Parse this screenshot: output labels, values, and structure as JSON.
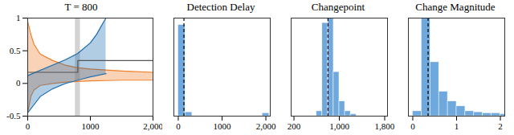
{
  "chart_data": [
    {
      "type": "line",
      "title": "T = 800",
      "xlim": [
        0,
        2000
      ],
      "xticks": [
        0,
        1000,
        {
          "value": 2000,
          "label": "2,000"
        }
      ],
      "ylim": [
        -0.5,
        1
      ],
      "yticks": [
        -0.5,
        0,
        0.5,
        1
      ],
      "highlight_x": [
        760,
        840
      ],
      "series": [
        {
          "type": "band",
          "color": "#f07f2a",
          "x": [
            0,
            50,
            100,
            200,
            400,
            600,
            800,
            1000,
            1500,
            2000
          ],
          "upper": [
            0.95,
            0.75,
            0.6,
            0.45,
            0.35,
            0.28,
            0.24,
            0.22,
            0.19,
            0.17
          ],
          "lower": [
            -0.45,
            -0.2,
            -0.1,
            -0.03,
            0,
            0.02,
            0.03,
            0.04,
            0.05,
            0.05
          ]
        },
        {
          "type": "band",
          "color": "#1f6fb2",
          "x": [
            0,
            200,
            400,
            600,
            800,
            1000,
            1100,
            1200,
            1250
          ],
          "upper": [
            0.12,
            0.2,
            0.28,
            0.36,
            0.46,
            0.62,
            0.75,
            0.92,
            1.0
          ],
          "lower": [
            -0.45,
            -0.2,
            -0.08,
            0,
            0.05,
            0.1,
            0.12,
            0.14,
            0.15
          ]
        },
        {
          "type": "line",
          "color": "#555555",
          "x": [
            0,
            800,
            800,
            2000
          ],
          "values": [
            0.17,
            0.17,
            0.35,
            0.35
          ]
        }
      ]
    },
    {
      "type": "histogram",
      "title": "Detection Delay",
      "color": "#6fa8dc",
      "tick_labels": "x",
      "xlim": [
        -100,
        2100
      ],
      "xticks": [
        0,
        1000,
        {
          "value": 2000,
          "label": "2,000"
        }
      ],
      "ylim": [
        0,
        1
      ],
      "bins": [
        0,
        160,
        320,
        480,
        640,
        800,
        960,
        1120,
        1280,
        1440,
        1600,
        1760,
        1920,
        2080
      ],
      "counts": [
        0.93,
        0.04,
        0,
        0,
        0,
        0,
        0,
        0,
        0,
        0,
        0,
        0,
        0.03
      ],
      "reference_line": 130
    },
    {
      "type": "histogram",
      "title": "Changepoint",
      "color": "#6fa8dc",
      "tick_labels": "x",
      "xlim": [
        150,
        1850
      ],
      "xticks": [
        200,
        {
          "value": 1000,
          "label": "1,000"
        },
        {
          "value": 1800,
          "label": "1,800"
        }
      ],
      "ylim": [
        0,
        1
      ],
      "bins": [
        600,
        700,
        800,
        900,
        1000,
        1100,
        1200,
        1300
      ],
      "counts": [
        0.05,
        0.95,
        1.0,
        0.45,
        0.15,
        0.05,
        0.02
      ],
      "reference_line": 800
    },
    {
      "type": "histogram",
      "title": "Change Magnitude",
      "color": "#6fa8dc",
      "tick_labels": "x",
      "xlim": [
        -0.1,
        2.1
      ],
      "xticks": [
        0,
        1,
        2
      ],
      "ylim": [
        0,
        1
      ],
      "bins": [
        0,
        0.2,
        0.4,
        0.6,
        0.8,
        1.0,
        1.2,
        1.4,
        1.6,
        1.8,
        2.0,
        2.2
      ],
      "counts": [
        0.05,
        1.0,
        0.55,
        0.25,
        0.15,
        0.1,
        0.05,
        0.04,
        0.03,
        0.03,
        0.02
      ],
      "reference_line": 0.35
    }
  ]
}
